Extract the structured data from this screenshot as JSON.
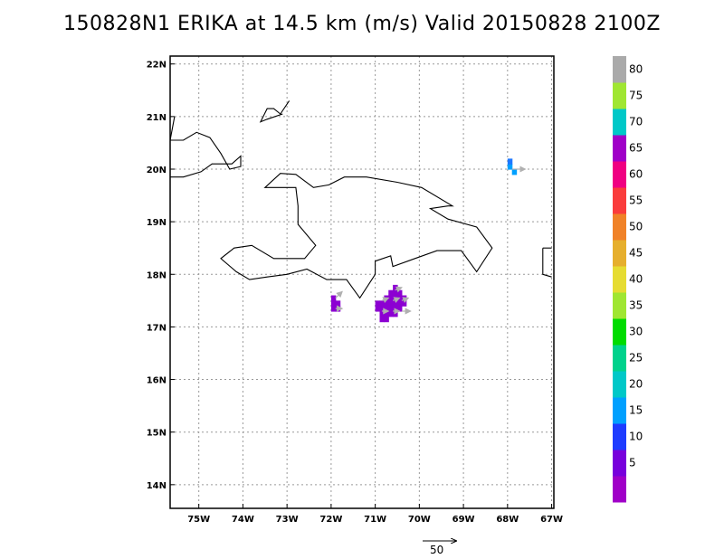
{
  "title": "150828N1 ERIKA at 14.5 km (m/s) Valid 20150828 2100Z",
  "x_ticks": [
    {
      "lon": -75,
      "label": "75W"
    },
    {
      "lon": -74,
      "label": "74W"
    },
    {
      "lon": -73,
      "label": "73W"
    },
    {
      "lon": -72,
      "label": "72W"
    },
    {
      "lon": -71,
      "label": "71W"
    },
    {
      "lon": -70,
      "label": "70W"
    },
    {
      "lon": -69,
      "label": "69W"
    },
    {
      "lon": -68,
      "label": "68W"
    },
    {
      "lon": -67,
      "label": "67W"
    }
  ],
  "y_ticks": [
    {
      "lat": 22,
      "label": "22N"
    },
    {
      "lat": 21,
      "label": "21N"
    },
    {
      "lat": 20,
      "label": "20N"
    },
    {
      "lat": 19,
      "label": "19N"
    },
    {
      "lat": 18,
      "label": "18N"
    },
    {
      "lat": 17,
      "label": "17N"
    },
    {
      "lat": 16,
      "label": "16N"
    },
    {
      "lat": 15,
      "label": "15N"
    },
    {
      "lat": 14,
      "label": "14N"
    }
  ],
  "colorbar": [
    {
      "label": "",
      "color": "#a000c8"
    },
    {
      "label": "5",
      "color": "#7800dc"
    },
    {
      "label": "10",
      "color": "#1e3cff"
    },
    {
      "label": "15",
      "color": "#00a0ff"
    },
    {
      "label": "20",
      "color": "#00c8c8"
    },
    {
      "label": "25",
      "color": "#00d28c"
    },
    {
      "label": "30",
      "color": "#00dc00"
    },
    {
      "label": "35",
      "color": "#a0e632"
    },
    {
      "label": "40",
      "color": "#e6dc32"
    },
    {
      "label": "45",
      "color": "#e6af2d"
    },
    {
      "label": "50",
      "color": "#f08228"
    },
    {
      "label": "55",
      "color": "#fa3c3c"
    },
    {
      "label": "60",
      "color": "#f00082"
    },
    {
      "label": "65",
      "color": "#a000c8"
    },
    {
      "label": "70",
      "color": "#00c8c8"
    },
    {
      "label": "75",
      "color": "#a0e632"
    },
    {
      "label": "80",
      "color": "#aaaaaa"
    }
  ],
  "reference_vector": {
    "label": "50"
  },
  "wind_cells": [
    {
      "lon": -71.85,
      "lat": 17.45,
      "color": "#8c00d2"
    },
    {
      "lon": -71.95,
      "lat": 17.45,
      "color": "#8c00d2"
    },
    {
      "lon": -71.85,
      "lat": 17.35,
      "color": "#8c00d2"
    },
    {
      "lon": -71.95,
      "lat": 17.35,
      "color": "#8c00d2"
    },
    {
      "lon": -71.95,
      "lat": 17.55,
      "color": "#8c00d2"
    },
    {
      "lon": -70.55,
      "lat": 17.75,
      "color": "#8c00d2"
    },
    {
      "lon": -70.65,
      "lat": 17.65,
      "color": "#8c00d2"
    },
    {
      "lon": -70.55,
      "lat": 17.65,
      "color": "#8c00d2"
    },
    {
      "lon": -70.45,
      "lat": 17.65,
      "color": "#8c00d2"
    },
    {
      "lon": -70.75,
      "lat": 17.55,
      "color": "#8c00d2"
    },
    {
      "lon": -70.65,
      "lat": 17.55,
      "color": "#8c00d2"
    },
    {
      "lon": -70.55,
      "lat": 17.55,
      "color": "#8c00d2"
    },
    {
      "lon": -70.45,
      "lat": 17.55,
      "color": "#8c00d2"
    },
    {
      "lon": -70.35,
      "lat": 17.55,
      "color": "#8c00d2"
    },
    {
      "lon": -70.95,
      "lat": 17.45,
      "color": "#8c00d2"
    },
    {
      "lon": -70.85,
      "lat": 17.45,
      "color": "#8c00d2"
    },
    {
      "lon": -70.75,
      "lat": 17.45,
      "color": "#8c00d2"
    },
    {
      "lon": -70.65,
      "lat": 17.45,
      "color": "#8c00d2"
    },
    {
      "lon": -70.55,
      "lat": 17.45,
      "color": "#8c00d2"
    },
    {
      "lon": -70.45,
      "lat": 17.45,
      "color": "#8c00d2"
    },
    {
      "lon": -70.35,
      "lat": 17.45,
      "color": "#8c00d2"
    },
    {
      "lon": -70.95,
      "lat": 17.35,
      "color": "#8c00d2"
    },
    {
      "lon": -70.85,
      "lat": 17.35,
      "color": "#8c00d2"
    },
    {
      "lon": -70.75,
      "lat": 17.35,
      "color": "#8c00d2"
    },
    {
      "lon": -70.65,
      "lat": 17.35,
      "color": "#8c00d2"
    },
    {
      "lon": -70.55,
      "lat": 17.35,
      "color": "#8c00d2"
    },
    {
      "lon": -70.45,
      "lat": 17.35,
      "color": "#8c00d2"
    },
    {
      "lon": -70.85,
      "lat": 17.25,
      "color": "#8c00d2"
    },
    {
      "lon": -70.75,
      "lat": 17.25,
      "color": "#8c00d2"
    },
    {
      "lon": -70.65,
      "lat": 17.25,
      "color": "#8c00d2"
    },
    {
      "lon": -70.55,
      "lat": 17.25,
      "color": "#8c00d2"
    },
    {
      "lon": -70.85,
      "lat": 17.15,
      "color": "#8c00d2"
    },
    {
      "lon": -70.75,
      "lat": 17.15,
      "color": "#8c00d2"
    },
    {
      "lon": -67.95,
      "lat": 20.05,
      "color": "#00a0ff"
    },
    {
      "lon": -67.95,
      "lat": 20.15,
      "color": "#1e78ff"
    },
    {
      "lon": -67.85,
      "lat": 19.95,
      "color": "#00a0ff"
    }
  ],
  "wind_arrows": [
    {
      "lon": -71.9,
      "lat": 17.55,
      "dlon": 0.15,
      "dlat": 0.12
    },
    {
      "lon": -71.9,
      "lat": 17.35,
      "dlon": 0.15,
      "dlat": 0.0
    },
    {
      "lon": -70.55,
      "lat": 17.7,
      "dlon": 0.15,
      "dlat": 0.05
    },
    {
      "lon": -70.85,
      "lat": 17.5,
      "dlon": 0.15,
      "dlat": 0.05
    },
    {
      "lon": -70.6,
      "lat": 17.5,
      "dlon": 0.15,
      "dlat": 0.05
    },
    {
      "lon": -70.4,
      "lat": 17.5,
      "dlon": 0.15,
      "dlat": 0.05
    },
    {
      "lon": -70.85,
      "lat": 17.3,
      "dlon": 0.15,
      "dlat": 0.0
    },
    {
      "lon": -70.6,
      "lat": 17.3,
      "dlon": 0.15,
      "dlat": 0.0
    },
    {
      "lon": -70.4,
      "lat": 17.3,
      "dlon": 0.2,
      "dlat": 0.0
    },
    {
      "lon": -67.9,
      "lat": 20.0,
      "dlon": 0.3,
      "dlat": 0.0
    }
  ],
  "coastlines": [
    [
      [
        -75.65,
        19.85
      ],
      [
        -75.35,
        19.85
      ],
      [
        -74.95,
        19.95
      ],
      [
        -74.7,
        20.1
      ],
      [
        -74.25,
        20.1
      ],
      [
        -74.05,
        20.25
      ],
      [
        -74.05,
        20.05
      ],
      [
        -74.3,
        20.0
      ],
      [
        -74.5,
        20.3
      ],
      [
        -74.75,
        20.6
      ],
      [
        -75.05,
        20.7
      ],
      [
        -75.35,
        20.55
      ],
      [
        -75.65,
        20.55
      ]
    ],
    [
      [
        -75.65,
        20.55
      ],
      [
        -75.55,
        21.0
      ]
    ],
    [
      [
        -73.1,
        21.05
      ],
      [
        -73.45,
        20.95
      ],
      [
        -73.6,
        20.9
      ],
      [
        -73.45,
        21.15
      ],
      [
        -73.3,
        21.15
      ],
      [
        -73.15,
        21.05
      ],
      [
        -72.95,
        21.3
      ]
    ],
    [
      [
        -72.4,
        19.65
      ],
      [
        -72.8,
        19.9
      ],
      [
        -73.15,
        19.92
      ],
      [
        -73.5,
        19.65
      ],
      [
        -72.8,
        19.65
      ],
      [
        -72.75,
        19.3
      ],
      [
        -72.75,
        18.95
      ],
      [
        -72.35,
        18.55
      ],
      [
        -72.6,
        18.3
      ],
      [
        -73.3,
        18.3
      ],
      [
        -73.8,
        18.55
      ],
      [
        -74.2,
        18.5
      ],
      [
        -74.5,
        18.3
      ],
      [
        -74.15,
        18.05
      ],
      [
        -73.85,
        17.9
      ],
      [
        -73.45,
        17.95
      ],
      [
        -73.0,
        18.0
      ],
      [
        -72.55,
        18.1
      ],
      [
        -72.1,
        17.9
      ],
      [
        -71.65,
        17.9
      ],
      [
        -71.35,
        17.55
      ],
      [
        -71.0,
        18.0
      ],
      [
        -71.0,
        18.25
      ],
      [
        -70.65,
        18.35
      ],
      [
        -70.6,
        18.15
      ],
      [
        -70.1,
        18.3
      ],
      [
        -69.6,
        18.45
      ],
      [
        -69.05,
        18.45
      ],
      [
        -68.7,
        18.05
      ],
      [
        -68.35,
        18.5
      ],
      [
        -68.7,
        18.9
      ],
      [
        -69.35,
        19.05
      ],
      [
        -69.75,
        19.25
      ],
      [
        -69.35,
        19.3
      ],
      [
        -69.25,
        19.3
      ],
      [
        -69.95,
        19.65
      ],
      [
        -70.5,
        19.75
      ],
      [
        -71.2,
        19.85
      ],
      [
        -71.7,
        19.85
      ],
      [
        -72.05,
        19.7
      ],
      [
        -72.4,
        19.65
      ],
      [
        -72.8,
        19.9
      ]
    ],
    [
      [
        -67.2,
        18.5
      ],
      [
        -67.0,
        18.5
      ]
    ],
    [
      [
        -67.2,
        18.5
      ],
      [
        -67.2,
        18.0
      ],
      [
        -67.0,
        17.95
      ]
    ]
  ]
}
